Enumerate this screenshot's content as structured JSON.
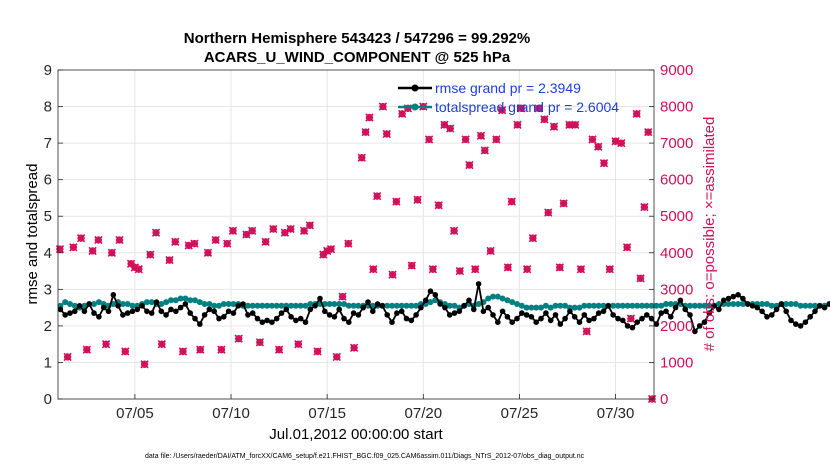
{
  "chart_data": {
    "type": "line",
    "title_line1": "Northern Hemisphere 543423 / 547296 = 99.292%",
    "title_line2": "ACARS_U_WIND_COMPONENT @ 525 hPa",
    "xlabel": "Jul.01,2012 00:00:00 start",
    "ylabel_left": "rmse and totalspread",
    "ylabel_right": "# of obs: o=possible; ×=assimilated",
    "footnote": "data file: /Users/raeder/DAI/ATM_forcXX/CAM6_setup/f.e21.FHIST_BGC.f09_025.CAM6assim.011/Diags_NTrS_2012-07/obs_diag_output.nc",
    "x_range_days": [
      1.0,
      32.0
    ],
    "ylim_left": [
      0,
      9
    ],
    "ylim_right": [
      0,
      9000
    ],
    "x_ticks": [
      {
        "day": 5,
        "label": "07/05"
      },
      {
        "day": 10,
        "label": "07/10"
      },
      {
        "day": 15,
        "label": "07/15"
      },
      {
        "day": 20,
        "label": "07/20"
      },
      {
        "day": 25,
        "label": "07/25"
      },
      {
        "day": 30,
        "label": "07/30"
      }
    ],
    "y_ticks_left": [
      "0",
      "1",
      "2",
      "3",
      "4",
      "5",
      "6",
      "7",
      "8",
      "9"
    ],
    "y_ticks_right": [
      "0",
      "1000",
      "2000",
      "3000",
      "4000",
      "5000",
      "6000",
      "7000",
      "8000",
      "9000"
    ],
    "legend": [
      {
        "label": "rmse grand pr = 2.3949",
        "color": "#000000"
      },
      {
        "label": "totalspread grand pr = 2.6004",
        "color": "#008080"
      }
    ],
    "colors": {
      "rmse": "#000000",
      "spread": "#008080",
      "obs": "#d0105a",
      "grid": "#e6e6e6",
      "axis": "#262626"
    },
    "x_start_day": 1.125,
    "x_step_day": 0.25,
    "rmse": [
      2.45,
      2.3,
      2.35,
      2.4,
      2.55,
      2.4,
      2.6,
      2.35,
      2.25,
      2.5,
      2.4,
      2.85,
      2.55,
      2.3,
      2.35,
      2.4,
      2.45,
      2.55,
      2.4,
      2.35,
      2.65,
      2.4,
      2.3,
      2.45,
      2.4,
      2.5,
      2.6,
      2.35,
      2.2,
      2.05,
      2.3,
      2.45,
      2.4,
      2.2,
      2.25,
      2.4,
      2.35,
      2.55,
      2.6,
      2.3,
      2.35,
      2.2,
      2.1,
      2.15,
      2.1,
      2.2,
      2.35,
      2.45,
      2.25,
      2.15,
      2.2,
      2.1,
      2.45,
      2.55,
      2.75,
      2.4,
      2.3,
      2.25,
      2.45,
      2.2,
      2.1,
      2.35,
      2.3,
      2.5,
      2.65,
      2.4,
      2.6,
      2.55,
      2.3,
      2.1,
      2.35,
      2.4,
      2.2,
      2.15,
      2.3,
      2.5,
      2.7,
      2.95,
      2.85,
      2.6,
      2.5,
      2.3,
      2.35,
      2.4,
      2.55,
      2.7,
      2.45,
      3.15,
      2.4,
      2.5,
      2.3,
      2.1,
      2.4,
      2.25,
      2.1,
      2.2,
      2.35,
      2.3,
      2.25,
      2.1,
      2.2,
      2.35,
      2.15,
      2.3,
      2.05,
      2.2,
      2.4,
      2.25,
      2.1,
      2.3,
      2.15,
      2.2,
      2.35,
      2.4,
      2.55,
      2.3,
      2.2,
      2.15,
      2.0,
      1.95,
      2.1,
      2.2,
      2.3,
      2.2,
      2.05,
      2.35,
      2.4,
      2.25,
      2.5,
      2.7,
      2.45,
      2.3,
      1.85,
      2.0,
      2.1,
      2.35,
      2.55,
      2.45,
      2.7,
      2.75,
      2.8,
      2.85,
      2.75,
      2.6,
      2.55,
      2.5,
      2.4,
      2.25,
      2.3,
      2.45,
      2.6,
      2.4,
      2.15,
      2.05,
      2.0,
      2.1,
      2.25,
      2.4,
      2.55,
      2.5,
      2.6,
      2.65,
      2.45,
      2.5,
      2.4,
      2.55,
      2.6,
      2.4,
      2.35,
      2.45,
      2.3,
      2.5,
      2.6,
      2.4,
      2.45,
      2.3,
      2.2,
      2.1,
      2.2,
      2.45,
      2.4,
      2.25,
      2.6,
      2.35,
      2.15,
      2.2,
      2.25,
      2.45,
      2.6,
      2.75,
      2.4,
      2.2,
      2.35,
      2.3,
      2.45,
      2.6,
      2.5,
      2.3,
      2.4,
      2.35,
      2.25,
      2.3
    ],
    "spread": [
      2.55,
      2.65,
      2.6,
      2.55,
      2.5,
      2.55,
      2.6,
      2.6,
      2.65,
      2.6,
      2.55,
      2.6,
      2.65,
      2.6,
      2.6,
      2.55,
      2.55,
      2.6,
      2.65,
      2.65,
      2.6,
      2.6,
      2.65,
      2.7,
      2.7,
      2.75,
      2.75,
      2.7,
      2.7,
      2.65,
      2.6,
      2.6,
      2.55,
      2.55,
      2.6,
      2.6,
      2.6,
      2.6,
      2.55,
      2.55,
      2.55,
      2.55,
      2.55,
      2.55,
      2.55,
      2.55,
      2.55,
      2.55,
      2.55,
      2.55,
      2.55,
      2.55,
      2.6,
      2.6,
      2.6,
      2.6,
      2.6,
      2.6,
      2.6,
      2.6,
      2.55,
      2.55,
      2.55,
      2.55,
      2.55,
      2.55,
      2.55,
      2.55,
      2.55,
      2.55,
      2.55,
      2.55,
      2.55,
      2.55,
      2.55,
      2.6,
      2.6,
      2.65,
      2.7,
      2.65,
      2.6,
      2.55,
      2.55,
      2.5,
      2.55,
      2.6,
      2.55,
      2.6,
      2.65,
      2.75,
      2.8,
      2.8,
      2.75,
      2.7,
      2.65,
      2.6,
      2.55,
      2.5,
      2.5,
      2.5,
      2.5,
      2.55,
      2.5,
      2.55,
      2.55,
      2.55,
      2.5,
      2.5,
      2.5,
      2.55,
      2.55,
      2.55,
      2.55,
      2.55,
      2.55,
      2.55,
      2.55,
      2.55,
      2.55,
      2.55,
      2.55,
      2.55,
      2.55,
      2.55,
      2.55,
      2.55,
      2.6,
      2.6,
      2.6,
      2.6,
      2.55,
      2.55,
      2.55,
      2.55,
      2.55,
      2.55,
      2.55,
      2.6,
      2.6,
      2.6,
      2.6,
      2.6,
      2.6,
      2.6,
      2.6,
      2.6,
      2.6,
      2.6,
      2.55,
      2.55,
      2.6,
      2.6,
      2.6,
      2.6,
      2.55,
      2.55,
      2.55,
      2.55,
      2.55,
      2.55,
      2.6,
      2.6,
      2.6,
      2.55,
      2.55,
      2.55,
      2.55,
      2.55,
      2.55,
      2.55,
      2.55,
      2.55,
      2.55,
      2.55,
      2.55,
      2.55,
      2.55,
      2.55,
      2.55,
      2.55,
      2.55,
      2.55,
      2.55,
      2.55,
      2.55,
      2.55,
      2.55,
      2.6,
      2.6,
      2.6,
      2.55,
      2.55,
      2.55,
      2.55,
      2.55,
      2.55,
      2.55,
      2.55,
      2.55,
      2.55,
      2.55,
      2.55
    ],
    "obs": [
      {
        "day": 1.1,
        "count": 4100
      },
      {
        "day": 1.5,
        "count": 1150
      },
      {
        "day": 1.8,
        "count": 4150
      },
      {
        "day": 2.2,
        "count": 4400
      },
      {
        "day": 2.5,
        "count": 1350
      },
      {
        "day": 2.8,
        "count": 4050
      },
      {
        "day": 3.1,
        "count": 4350
      },
      {
        "day": 3.5,
        "count": 1500
      },
      {
        "day": 3.8,
        "count": 4000
      },
      {
        "day": 4.2,
        "count": 4350
      },
      {
        "day": 4.5,
        "count": 1300
      },
      {
        "day": 4.8,
        "count": 3700
      },
      {
        "day": 5.0,
        "count": 3600
      },
      {
        "day": 5.2,
        "count": 3550
      },
      {
        "day": 5.5,
        "count": 950
      },
      {
        "day": 5.8,
        "count": 3950
      },
      {
        "day": 6.1,
        "count": 4550
      },
      {
        "day": 6.4,
        "count": 1500
      },
      {
        "day": 6.8,
        "count": 3800
      },
      {
        "day": 7.1,
        "count": 4300
      },
      {
        "day": 7.5,
        "count": 1300
      },
      {
        "day": 7.8,
        "count": 4200
      },
      {
        "day": 8.1,
        "count": 4250
      },
      {
        "day": 8.4,
        "count": 1350
      },
      {
        "day": 8.8,
        "count": 4000
      },
      {
        "day": 9.2,
        "count": 4350
      },
      {
        "day": 9.5,
        "count": 1350
      },
      {
        "day": 9.8,
        "count": 4250
      },
      {
        "day": 10.1,
        "count": 4600
      },
      {
        "day": 10.4,
        "count": 1650
      },
      {
        "day": 10.8,
        "count": 4500
      },
      {
        "day": 11.1,
        "count": 4600
      },
      {
        "day": 11.5,
        "count": 1550
      },
      {
        "day": 11.8,
        "count": 4300
      },
      {
        "day": 12.2,
        "count": 4650
      },
      {
        "day": 12.5,
        "count": 1350
      },
      {
        "day": 12.8,
        "count": 4550
      },
      {
        "day": 13.1,
        "count": 4650
      },
      {
        "day": 13.5,
        "count": 1500
      },
      {
        "day": 13.8,
        "count": 4600
      },
      {
        "day": 14.1,
        "count": 4750
      },
      {
        "day": 14.5,
        "count": 1300
      },
      {
        "day": 14.8,
        "count": 3950
      },
      {
        "day": 15.0,
        "count": 4050
      },
      {
        "day": 15.2,
        "count": 4100
      },
      {
        "day": 15.5,
        "count": 1150
      },
      {
        "day": 15.8,
        "count": 2800
      },
      {
        "day": 16.1,
        "count": 4250
      },
      {
        "day": 16.4,
        "count": 1400
      },
      {
        "day": 16.8,
        "count": 6600
      },
      {
        "day": 17.0,
        "count": 7300
      },
      {
        "day": 17.2,
        "count": 7700
      },
      {
        "day": 17.4,
        "count": 3550
      },
      {
        "day": 17.6,
        "count": 5550
      },
      {
        "day": 17.9,
        "count": 8000
      },
      {
        "day": 18.1,
        "count": 7250
      },
      {
        "day": 18.4,
        "count": 3400
      },
      {
        "day": 18.6,
        "count": 5400
      },
      {
        "day": 18.9,
        "count": 7800
      },
      {
        "day": 19.2,
        "count": 7950
      },
      {
        "day": 19.4,
        "count": 3650
      },
      {
        "day": 19.7,
        "count": 5450
      },
      {
        "day": 20.0,
        "count": 8000
      },
      {
        "day": 20.3,
        "count": 7100
      },
      {
        "day": 20.5,
        "count": 3550
      },
      {
        "day": 20.8,
        "count": 5300
      },
      {
        "day": 21.1,
        "count": 7500
      },
      {
        "day": 21.4,
        "count": 7400
      },
      {
        "day": 21.6,
        "count": 4600
      },
      {
        "day": 21.9,
        "count": 3500
      },
      {
        "day": 22.2,
        "count": 7100
      },
      {
        "day": 22.4,
        "count": 6400
      },
      {
        "day": 22.7,
        "count": 3550
      },
      {
        "day": 23.0,
        "count": 7200
      },
      {
        "day": 23.2,
        "count": 6800
      },
      {
        "day": 23.5,
        "count": 4050
      },
      {
        "day": 23.8,
        "count": 7100
      },
      {
        "day": 24.1,
        "count": 7900
      },
      {
        "day": 24.4,
        "count": 3600
      },
      {
        "day": 24.6,
        "count": 5400
      },
      {
        "day": 24.9,
        "count": 7500
      },
      {
        "day": 25.1,
        "count": 7950
      },
      {
        "day": 25.4,
        "count": 3550
      },
      {
        "day": 25.7,
        "count": 4400
      },
      {
        "day": 26.0,
        "count": 7950
      },
      {
        "day": 26.3,
        "count": 7650
      },
      {
        "day": 26.5,
        "count": 5100
      },
      {
        "day": 26.8,
        "count": 7450
      },
      {
        "day": 27.1,
        "count": 3600
      },
      {
        "day": 27.3,
        "count": 5350
      },
      {
        "day": 27.6,
        "count": 7500
      },
      {
        "day": 27.9,
        "count": 7500
      },
      {
        "day": 28.2,
        "count": 3550
      },
      {
        "day": 28.5,
        "count": 1850
      },
      {
        "day": 28.8,
        "count": 7100
      },
      {
        "day": 29.1,
        "count": 6900
      },
      {
        "day": 29.4,
        "count": 6450
      },
      {
        "day": 29.7,
        "count": 3550
      },
      {
        "day": 30.0,
        "count": 7050
      },
      {
        "day": 30.3,
        "count": 7000
      },
      {
        "day": 30.6,
        "count": 4150
      },
      {
        "day": 30.8,
        "count": 2200
      },
      {
        "day": 31.1,
        "count": 7800
      },
      {
        "day": 31.3,
        "count": 3300
      },
      {
        "day": 31.5,
        "count": 5250
      },
      {
        "day": 31.7,
        "count": 7300
      },
      {
        "day": 31.9,
        "count": 0
      }
    ]
  }
}
